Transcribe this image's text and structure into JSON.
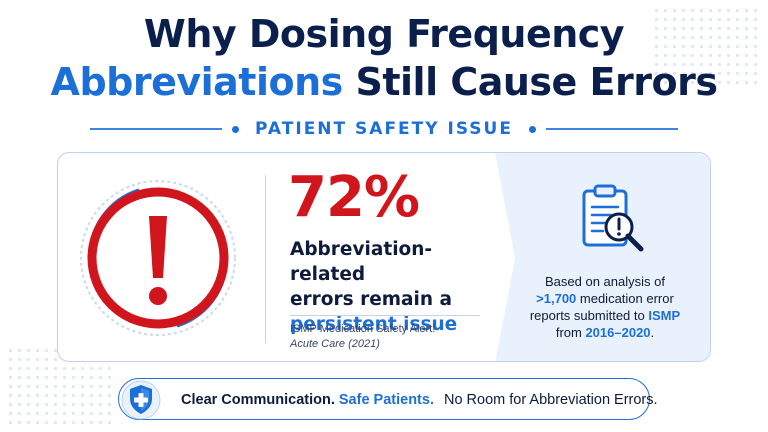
{
  "title": {
    "line1": "Why Dosing Frequency",
    "line2_accent": "Abbreviations",
    "line2_rest": "Still Cause Errors"
  },
  "section_label": "PATIENT SAFETY ISSUE",
  "stat": {
    "value": "72%",
    "line1": "Abbreviation-related",
    "line2": "errors remain a",
    "line3": "persistent issue"
  },
  "source": {
    "line1": "ISMP Medication Safety Alert!",
    "line2": "Acute Care (2021)"
  },
  "analysis": {
    "p1": "Based on analysis of",
    "count": ">1,700",
    "p2": " medication error",
    "p3": "reports submitted to ",
    "org": "ISMP",
    "p4": "from ",
    "years": "2016–2020",
    "p5": "."
  },
  "banner": {
    "part1": "Clear Communication.",
    "part2": "Safe Patients.",
    "part3": "No Room for Abbreviation Errors."
  },
  "icons": {
    "alert": "exclamation-alert-icon",
    "report": "clipboard-magnifier-icon",
    "shield": "shield-cross-icon"
  },
  "colors": {
    "navy": "#0b1f4d",
    "blue": "#1d6fd8",
    "red": "#d0151d",
    "panel": "#e9f1fc"
  }
}
